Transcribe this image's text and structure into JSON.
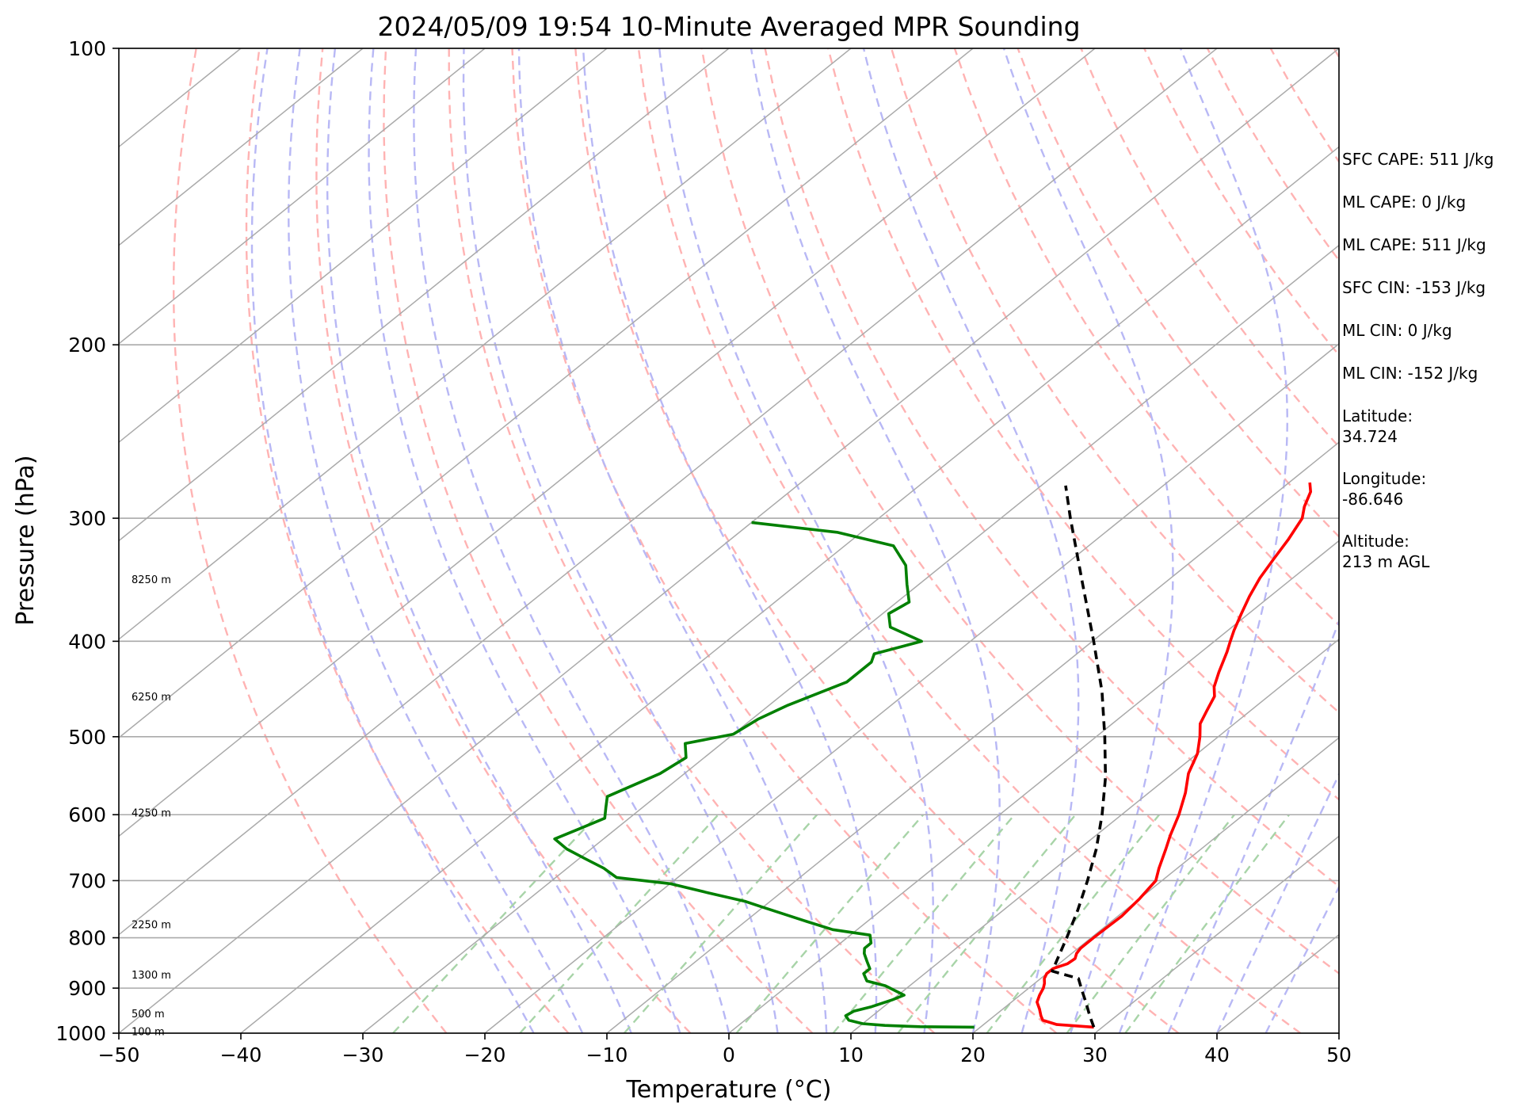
{
  "chart_data": {
    "type": "skew-t",
    "title": "2024/05/09 19:54 10-Minute Averaged MPR Sounding",
    "xlabel": "Temperature (°C)",
    "ylabel": "Pressure (hPa)",
    "xlim": [
      -50,
      50
    ],
    "ylim": [
      1000,
      100
    ],
    "y_scale": "log",
    "grid": true,
    "x_ticks": [
      "−50",
      "−40",
      "−30",
      "−20",
      "−10",
      "0",
      "10",
      "20",
      "30",
      "40",
      "50"
    ],
    "x_tick_values": [
      -50,
      -40,
      -30,
      -20,
      -10,
      0,
      10,
      20,
      30,
      40,
      50
    ],
    "y_ticks": [
      "100",
      "200",
      "300",
      "400",
      "500",
      "600",
      "700",
      "800",
      "900",
      "1000"
    ],
    "y_tick_values": [
      100,
      200,
      300,
      400,
      500,
      600,
      700,
      800,
      900,
      1000
    ],
    "height_labels": [
      {
        "text": "8250 m",
        "p": 346
      },
      {
        "text": "6250 m",
        "p": 455
      },
      {
        "text": "4250 m",
        "p": 597
      },
      {
        "text": "2250 m",
        "p": 775
      },
      {
        "text": "1300 m",
        "p": 872
      },
      {
        "text": "500 m",
        "p": 955
      },
      {
        "text": "100 m",
        "p": 995
      }
    ],
    "series": [
      {
        "color": "#ff0000",
        "style": "solid",
        "points": [
          [
            986,
            29.3
          ],
          [
            980,
            26.0
          ],
          [
            970,
            24.4
          ],
          [
            960,
            23.8
          ],
          [
            945,
            23.0
          ],
          [
            930,
            22.1
          ],
          [
            915,
            21.6
          ],
          [
            900,
            21.2
          ],
          [
            890,
            20.8
          ],
          [
            880,
            20.3
          ],
          [
            870,
            20.0
          ],
          [
            860,
            20.0
          ],
          [
            850,
            20.7
          ],
          [
            840,
            20.8
          ],
          [
            830,
            20.4
          ],
          [
            820,
            20.2
          ],
          [
            800,
            20.2
          ],
          [
            760,
            20.3
          ],
          [
            730,
            20.0
          ],
          [
            700,
            19.5
          ],
          [
            680,
            18.5
          ],
          [
            650,
            17.1
          ],
          [
            630,
            16.1
          ],
          [
            600,
            14.7
          ],
          [
            570,
            13.0
          ],
          [
            545,
            11.3
          ],
          [
            520,
            10.0
          ],
          [
            500,
            8.5
          ],
          [
            485,
            7.2
          ],
          [
            470,
            6.4
          ],
          [
            455,
            5.6
          ],
          [
            445,
            4.6
          ],
          [
            430,
            3.5
          ],
          [
            410,
            2.1
          ],
          [
            400,
            1.3
          ],
          [
            390,
            0.5
          ],
          [
            375,
            -0.6
          ],
          [
            360,
            -1.7
          ],
          [
            345,
            -2.7
          ],
          [
            330,
            -3.5
          ],
          [
            315,
            -4.3
          ],
          [
            300,
            -5.3
          ],
          [
            292,
            -6.3
          ],
          [
            282,
            -7.3
          ],
          [
            276,
            -8.3
          ]
        ]
      },
      {
        "color": "#008000",
        "style": "solid",
        "points": [
          [
            986,
            19.5
          ],
          [
            985,
            15.0
          ],
          [
            982,
            12.0
          ],
          [
            978,
            10.0
          ],
          [
            970,
            8.5
          ],
          [
            960,
            7.8
          ],
          [
            950,
            8.0
          ],
          [
            940,
            9.0
          ],
          [
            925,
            10.0
          ],
          [
            915,
            10.5
          ],
          [
            895,
            8.0
          ],
          [
            885,
            6.0
          ],
          [
            870,
            5.0
          ],
          [
            860,
            5.0
          ],
          [
            845,
            4.0
          ],
          [
            830,
            3.0
          ],
          [
            820,
            2.5
          ],
          [
            810,
            2.5
          ],
          [
            795,
            1.6
          ],
          [
            785,
            -2.0
          ],
          [
            770,
            -5.0
          ],
          [
            745,
            -10.0
          ],
          [
            735,
            -12.0
          ],
          [
            720,
            -16.0
          ],
          [
            705,
            -20.0
          ],
          [
            695,
            -25.0
          ],
          [
            680,
            -27.0
          ],
          [
            665,
            -29.5
          ],
          [
            650,
            -32.0
          ],
          [
            635,
            -34.0
          ],
          [
            620,
            -33.0
          ],
          [
            605,
            -32.0
          ],
          [
            590,
            -33.0
          ],
          [
            575,
            -34.0
          ],
          [
            545,
            -32.0
          ],
          [
            525,
            -31.5
          ],
          [
            508,
            -33.0
          ],
          [
            497,
            -30.0
          ],
          [
            480,
            -29.5
          ],
          [
            465,
            -28.5
          ],
          [
            440,
            -26.0
          ],
          [
            420,
            -26.0
          ],
          [
            412,
            -26.6
          ],
          [
            400,
            -24.0
          ],
          [
            387,
            -28.0
          ],
          [
            375,
            -29.5
          ],
          [
            365,
            -29.0
          ],
          [
            350,
            -31.0
          ],
          [
            335,
            -33.0
          ],
          [
            320,
            -36.0
          ],
          [
            310,
            -42.0
          ],
          [
            303,
            -50.0
          ]
        ]
      },
      {
        "color": "#000000",
        "style": "dashed",
        "points": [
          [
            986,
            29.3
          ],
          [
            960,
            27.8
          ],
          [
            930,
            26.1
          ],
          [
            905,
            24.6
          ],
          [
            880,
            23.1
          ],
          [
            865,
            20.2
          ],
          [
            850,
            19.7
          ],
          [
            800,
            18.0
          ],
          [
            750,
            16.1
          ],
          [
            700,
            13.9
          ],
          [
            650,
            11.4
          ],
          [
            600,
            8.4
          ],
          [
            550,
            4.9
          ],
          [
            500,
            0.7
          ],
          [
            450,
            -4.1
          ],
          [
            400,
            -9.9
          ],
          [
            350,
            -16.6
          ],
          [
            300,
            -24.3
          ],
          [
            278,
            -28.0
          ]
        ]
      }
    ]
  },
  "info_panel": {
    "sfc_cape": "SFC CAPE: 511 J/kg",
    "ml_cape": "ML CAPE: 0 J/kg",
    "ml_cape_2": "ML CAPE: 511 J/kg",
    "sfc_cin": "SFC CIN: -153 J/kg",
    "ml_cin": "ML CIN: 0 J/kg",
    "ml_cin_2": "ML CIN: -152 J/kg",
    "latitude_label": "Latitude:",
    "latitude_value": "34.724",
    "longitude_label": "Longitude:",
    "longitude_value": "-86.646",
    "altitude_label": "Altitude:",
    "altitude_value": "213 m AGL"
  },
  "colors": {
    "temperature": "#ff0000",
    "dewpoint": "#008000",
    "parcel": "#000000",
    "isotherm": "#aaaaaa",
    "dry_adiabat": "#ffb3b3",
    "moist_adiabat": "#b8b8f5",
    "mixing_ratio": "#a8d4a8"
  }
}
